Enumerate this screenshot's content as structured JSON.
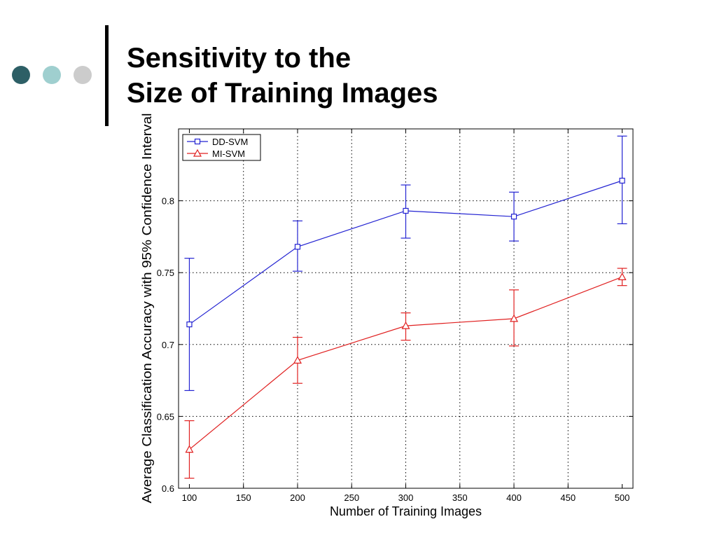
{
  "slide": {
    "title_line1": "Sensitivity to the",
    "title_line2": "Size of Training Images",
    "bullet_colors": [
      "#2d5f66",
      "#9fcfcf",
      "#cccccc"
    ]
  },
  "chart_data": {
    "type": "line",
    "title": "",
    "xlabel": "Number of Training Images",
    "ylabel": "Average Classification Accuracy with 95% Confidence Interval",
    "x": [
      100,
      200,
      300,
      400,
      500
    ],
    "xlim": [
      90,
      510
    ],
    "ylim": [
      0.6,
      0.85
    ],
    "xticks": [
      100,
      150,
      200,
      250,
      300,
      350,
      400,
      450,
      500
    ],
    "yticks": [
      0.6,
      0.65,
      0.7,
      0.75,
      0.8
    ],
    "ytick_labels": [
      "0.6",
      "0.65",
      "0.7",
      "0.75",
      "0.8"
    ],
    "grid": true,
    "legend_position": "top-left",
    "series": [
      {
        "name": "DD-SVM",
        "color": "#2323d2",
        "marker": "square",
        "values": [
          0.714,
          0.768,
          0.793,
          0.789,
          0.814
        ],
        "err_low": [
          0.668,
          0.751,
          0.774,
          0.772,
          0.784
        ],
        "err_high": [
          0.76,
          0.786,
          0.811,
          0.806,
          0.845
        ]
      },
      {
        "name": "MI-SVM",
        "color": "#e02020",
        "marker": "triangle",
        "values": [
          0.627,
          0.689,
          0.713,
          0.718,
          0.747
        ],
        "err_low": [
          0.607,
          0.673,
          0.703,
          0.699,
          0.741
        ],
        "err_high": [
          0.647,
          0.705,
          0.722,
          0.738,
          0.753
        ]
      }
    ]
  }
}
